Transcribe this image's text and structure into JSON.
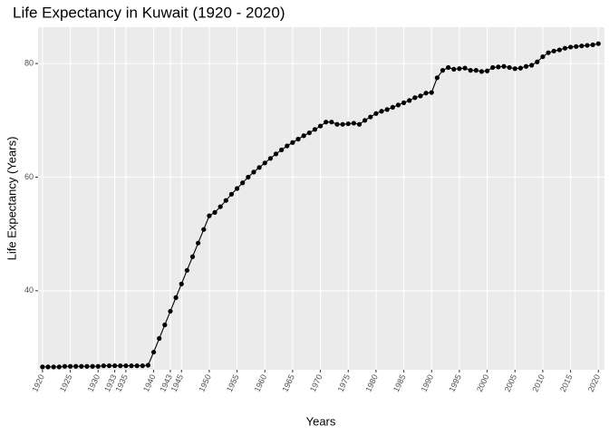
{
  "chart_data": {
    "type": "line",
    "title": "Life Expectancy in Kuwait (1920 - 2020)",
    "x_label": "Years",
    "y_label": "Life Expectancy (Years)",
    "x": [
      1920,
      1921,
      1922,
      1923,
      1924,
      1925,
      1926,
      1927,
      1928,
      1929,
      1930,
      1931,
      1932,
      1933,
      1934,
      1935,
      1936,
      1937,
      1938,
      1939,
      1940,
      1941,
      1942,
      1943,
      1944,
      1945,
      1946,
      1947,
      1948,
      1949,
      1950,
      1951,
      1952,
      1953,
      1954,
      1955,
      1956,
      1957,
      1958,
      1959,
      1960,
      1961,
      1962,
      1963,
      1964,
      1965,
      1966,
      1967,
      1968,
      1969,
      1970,
      1971,
      1972,
      1973,
      1974,
      1975,
      1976,
      1977,
      1978,
      1979,
      1980,
      1981,
      1982,
      1983,
      1984,
      1985,
      1986,
      1987,
      1988,
      1989,
      1990,
      1991,
      1992,
      1993,
      1994,
      1995,
      1996,
      1997,
      1998,
      1999,
      2000,
      2001,
      2002,
      2003,
      2004,
      2005,
      2006,
      2007,
      2008,
      2009,
      2010,
      2011,
      2012,
      2013,
      2014,
      2015,
      2016,
      2017,
      2018,
      2019,
      2020
    ],
    "series": [
      {
        "name": "Life Expectancy",
        "color": "#000000",
        "values": [
          26.6,
          26.6,
          26.6,
          26.6,
          26.7,
          26.7,
          26.7,
          26.7,
          26.7,
          26.7,
          26.7,
          26.8,
          26.8,
          26.8,
          26.8,
          26.8,
          26.8,
          26.8,
          26.8,
          26.9,
          29.2,
          31.6,
          34.0,
          36.4,
          38.8,
          41.2,
          43.6,
          46.0,
          48.4,
          50.8,
          53.2,
          53.8,
          54.8,
          55.9,
          57.0,
          58.0,
          59.0,
          60.0,
          60.9,
          61.7,
          62.5,
          63.3,
          64.1,
          64.8,
          65.5,
          66.1,
          66.7,
          67.3,
          67.8,
          68.4,
          69.0,
          69.7,
          69.7,
          69.3,
          69.3,
          69.4,
          69.5,
          69.3,
          70.0,
          70.6,
          71.2,
          71.6,
          71.9,
          72.3,
          72.7,
          73.1,
          73.5,
          74.0,
          74.3,
          74.8,
          74.9,
          77.5,
          78.8,
          79.3,
          79.0,
          79.1,
          79.2,
          78.8,
          78.8,
          78.6,
          78.7,
          79.3,
          79.4,
          79.5,
          79.3,
          79.1,
          79.2,
          79.5,
          79.7,
          80.3,
          81.2,
          81.9,
          82.2,
          82.4,
          82.7,
          82.9,
          83.0,
          83.1,
          83.2,
          83.3,
          83.5
        ]
      }
    ],
    "xlim": [
      1919.2,
      2021.1
    ],
    "ylim": [
      26.1,
      86.4
    ],
    "xticks": [
      1920,
      1925,
      1930,
      1933,
      1935,
      1940,
      1943,
      1945,
      1950,
      1955,
      1960,
      1965,
      1970,
      1975,
      1980,
      1985,
      1990,
      1995,
      2000,
      2005,
      2010,
      2015,
      2020
    ],
    "yticks": [
      40,
      60,
      80
    ],
    "grid": true
  }
}
